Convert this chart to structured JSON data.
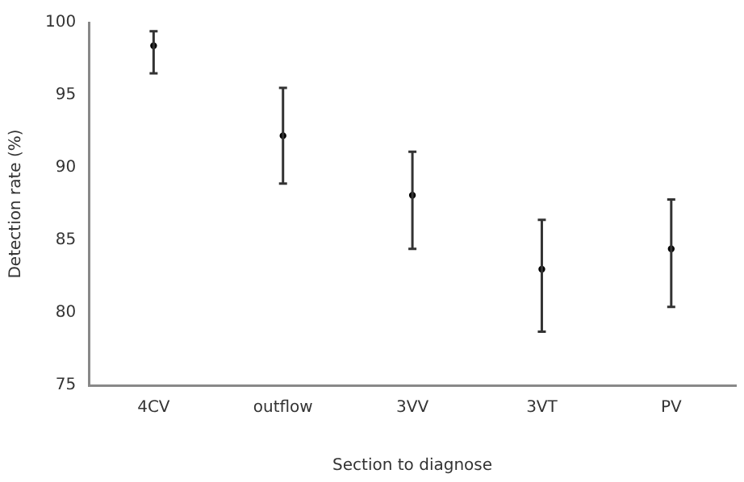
{
  "chart_data": {
    "type": "scatter",
    "xlabel": "Section to diagnose",
    "ylabel": "Detection rate (%)",
    "categories": [
      "4CV",
      "outflow",
      "3VV",
      "3VT",
      "PV"
    ],
    "values": [
      98.4,
      92.2,
      88.1,
      83.0,
      84.4
    ],
    "errors": [
      [
        96.5,
        99.4
      ],
      [
        88.9,
        95.5
      ],
      [
        84.4,
        91.1
      ],
      [
        78.7,
        86.4
      ],
      [
        80.4,
        87.8
      ]
    ],
    "color": "#000000",
    "marker": "circle",
    "ylim": [
      75,
      100
    ],
    "yticks": [
      75,
      80,
      85,
      90,
      95,
      100
    ],
    "grid": false,
    "legend": false
  }
}
